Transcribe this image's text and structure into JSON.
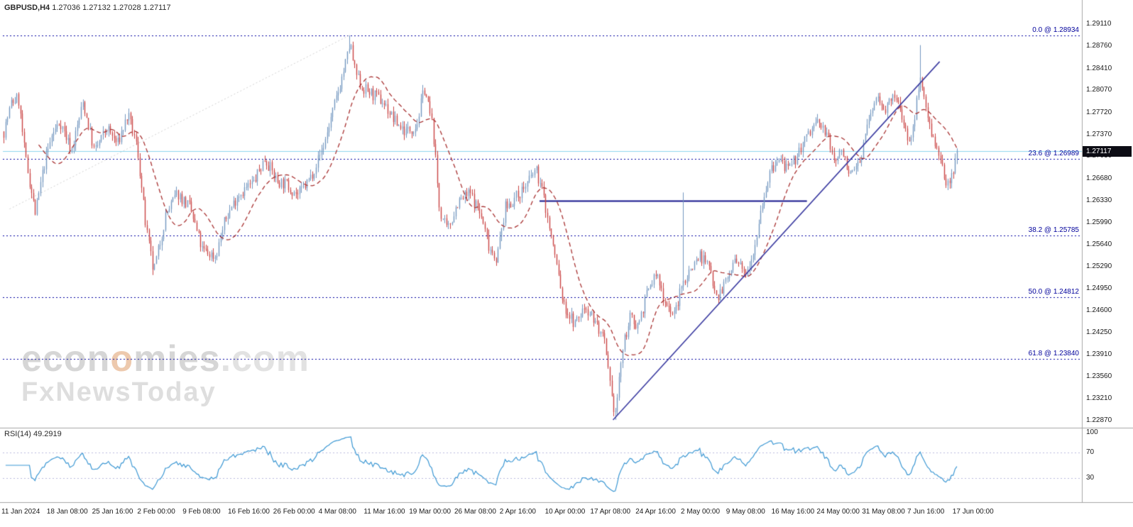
{
  "header": {
    "symbol": "GBPUSD,H4",
    "quotes": "1.27036 1.27132 1.27028 1.27117"
  },
  "watermark": {
    "part1": "econ",
    "part2": "o",
    "part3": "mies",
    "part4": ".com",
    "line2": "FxNewsToday"
  },
  "price_axis": {
    "labels": [
      "1.29110",
      "1.28760",
      "1.28410",
      "1.28070",
      "1.27720",
      "1.27370",
      "1.27030",
      "1.26680",
      "1.26330",
      "1.25990",
      "1.25640",
      "1.25290",
      "1.24950",
      "1.24600",
      "1.24250",
      "1.23910",
      "1.23560",
      "1.23210",
      "1.22870"
    ],
    "current_price_label": "1.27117"
  },
  "time_axis": {
    "labels": [
      "11 Jan 2024",
      "18 Jan 08:00",
      "25 Jan 16:00",
      "2 Feb 00:00",
      "9 Feb 08:00",
      "16 Feb 16:00",
      "26 Feb 00:00",
      "4 Mar 08:00",
      "11 Mar 16:00",
      "19 Mar 00:00",
      "26 Mar 08:00",
      "2 Apr 16:00",
      "10 Apr 00:00",
      "17 Apr 08:00",
      "24 Apr 16:00",
      "2 May 00:00",
      "9 May 08:00",
      "16 May 16:00",
      "24 May 00:00",
      "31 May 08:00",
      "7 Jun 16:00",
      "17 Jun 00:00"
    ]
  },
  "fibonacci": {
    "levels": [
      {
        "label": "0.0 @ 1.28934",
        "price": 1.28934
      },
      {
        "label": "23.6 @ 1.26989",
        "price": 1.26989
      },
      {
        "label": "38.2 @ 1.25785",
        "price": 1.25785
      },
      {
        "label": "50.0 @ 1.24812",
        "price": 1.24812
      },
      {
        "label": "61.8 @ 1.23840",
        "price": 1.2384
      }
    ]
  },
  "rsi_panel": {
    "title": "RSI(14)",
    "value": "49.2919",
    "axis_labels": [
      {
        "text": "100",
        "value": 100
      },
      {
        "text": "70",
        "value": 70
      },
      {
        "text": "30",
        "value": 30
      }
    ],
    "level_lines": [
      70,
      30
    ]
  },
  "chart_data": {
    "type": "candlestick",
    "symbol": "GBPUSD",
    "timeframe": "H4",
    "open": 1.27036,
    "high": 1.27132,
    "low": 1.27028,
    "close": 1.27117,
    "current_price": 1.27117,
    "y_range": [
      1.2278,
      1.292
    ],
    "candle_count": 520,
    "right_margin_frac": 0.115,
    "ma_period": 20,
    "price_path": [
      [
        0.0,
        1.2742
      ],
      [
        0.008,
        1.2788
      ],
      [
        0.015,
        1.2795
      ],
      [
        0.022,
        1.2705
      ],
      [
        0.033,
        1.2612
      ],
      [
        0.042,
        1.2688
      ],
      [
        0.05,
        1.2735
      ],
      [
        0.059,
        1.2758
      ],
      [
        0.071,
        1.2712
      ],
      [
        0.083,
        1.2788
      ],
      [
        0.095,
        1.271
      ],
      [
        0.108,
        1.2748
      ],
      [
        0.119,
        1.2722
      ],
      [
        0.13,
        1.2768
      ],
      [
        0.14,
        1.2715
      ],
      [
        0.149,
        1.259
      ],
      [
        0.157,
        1.252
      ],
      [
        0.17,
        1.2612
      ],
      [
        0.182,
        1.2645
      ],
      [
        0.195,
        1.2622
      ],
      [
        0.208,
        1.2555
      ],
      [
        0.222,
        1.2545
      ],
      [
        0.232,
        1.2602
      ],
      [
        0.245,
        1.2642
      ],
      [
        0.262,
        1.2662
      ],
      [
        0.274,
        1.27
      ],
      [
        0.286,
        1.2665
      ],
      [
        0.297,
        1.2658
      ],
      [
        0.309,
        1.2642
      ],
      [
        0.321,
        1.2668
      ],
      [
        0.335,
        1.2718
      ],
      [
        0.348,
        1.279
      ],
      [
        0.36,
        1.2858
      ],
      [
        0.363,
        1.2882
      ],
      [
        0.368,
        1.2838
      ],
      [
        0.375,
        1.2812
      ],
      [
        0.387,
        1.28
      ],
      [
        0.398,
        1.2788
      ],
      [
        0.41,
        1.2758
      ],
      [
        0.422,
        1.2742
      ],
      [
        0.433,
        1.2752
      ],
      [
        0.441,
        1.2812
      ],
      [
        0.45,
        1.2748
      ],
      [
        0.457,
        1.2618
      ],
      [
        0.465,
        1.2585
      ],
      [
        0.476,
        1.263
      ],
      [
        0.489,
        1.2645
      ],
      [
        0.5,
        1.2612
      ],
      [
        0.509,
        1.2562
      ],
      [
        0.517,
        1.2542
      ],
      [
        0.526,
        1.2622
      ],
      [
        0.537,
        1.2638
      ],
      [
        0.549,
        1.266
      ],
      [
        0.558,
        1.2682
      ],
      [
        0.565,
        1.2648
      ],
      [
        0.572,
        1.2592
      ],
      [
        0.58,
        1.2532
      ],
      [
        0.587,
        1.2468
      ],
      [
        0.599,
        1.2438
      ],
      [
        0.61,
        1.2468
      ],
      [
        0.621,
        1.2442
      ],
      [
        0.63,
        1.2408
      ],
      [
        0.638,
        1.2315
      ],
      [
        0.642,
        1.23
      ],
      [
        0.648,
        1.2388
      ],
      [
        0.656,
        1.2448
      ],
      [
        0.665,
        1.2438
      ],
      [
        0.675,
        1.2488
      ],
      [
        0.684,
        1.2518
      ],
      [
        0.693,
        1.2478
      ],
      [
        0.703,
        1.2452
      ],
      [
        0.712,
        1.2502
      ],
      [
        0.721,
        1.2528
      ],
      [
        0.73,
        1.2548
      ],
      [
        0.74,
        1.2528
      ],
      [
        0.749,
        1.2482
      ],
      [
        0.758,
        1.2508
      ],
      [
        0.767,
        1.2538
      ],
      [
        0.777,
        1.2518
      ],
      [
        0.787,
        1.2558
      ],
      [
        0.795,
        1.2628
      ],
      [
        0.804,
        1.2678
      ],
      [
        0.814,
        1.2698
      ],
      [
        0.824,
        1.2678
      ],
      [
        0.833,
        1.2708
      ],
      [
        0.844,
        1.2738
      ],
      [
        0.853,
        1.2758
      ],
      [
        0.862,
        1.2742
      ],
      [
        0.871,
        1.2698
      ],
      [
        0.881,
        1.2712
      ],
      [
        0.888,
        1.2668
      ],
      [
        0.898,
        1.2698
      ],
      [
        0.907,
        1.2758
      ],
      [
        0.916,
        1.2798
      ],
      [
        0.926,
        1.2778
      ],
      [
        0.935,
        1.2798
      ],
      [
        0.944,
        1.2758
      ],
      [
        0.951,
        1.2718
      ],
      [
        0.958,
        1.2792
      ],
      [
        0.961,
        1.2838
      ],
      [
        0.966,
        1.2788
      ],
      [
        0.974,
        1.2738
      ],
      [
        0.981,
        1.2698
      ],
      [
        0.989,
        1.2658
      ],
      [
        0.994,
        1.2672
      ],
      [
        1.0,
        1.27117
      ]
    ],
    "spikes": [
      {
        "t": 0.363,
        "high": 1.28934
      },
      {
        "t": 0.642,
        "low": 1.2288
      },
      {
        "t": 0.712,
        "high": 1.2646
      },
      {
        "t": 0.961,
        "high": 1.2878
      }
    ],
    "trendline": {
      "t1": 0.639,
      "price1": 1.2288,
      "t2": 0.981,
      "price2": 1.2852
    },
    "support_line": {
      "price": 1.2633,
      "t1": 0.562,
      "t2": 0.842
    },
    "fib_baseline": {
      "t1": 0.007,
      "price1": 1.262,
      "t2": 0.363,
      "price2": 1.28934
    },
    "rsi": {
      "period": 14,
      "current": 49.2919,
      "range": [
        0,
        100
      ]
    },
    "colors": {
      "candle_up": "#7296bf",
      "candle_down": "#c94343",
      "ma": "#a83232",
      "fib": "#0000a0",
      "trendline": "#3a3aa0",
      "support": "#14148c",
      "current_price_line": "#8ed6ee",
      "rsi_line": "#3b97d3",
      "rsi_levels": "#b9b9dd",
      "separator": "#a6a6a6",
      "fib_baseline": "#d0d0d0",
      "badge_bg": "#0c0c14"
    }
  }
}
